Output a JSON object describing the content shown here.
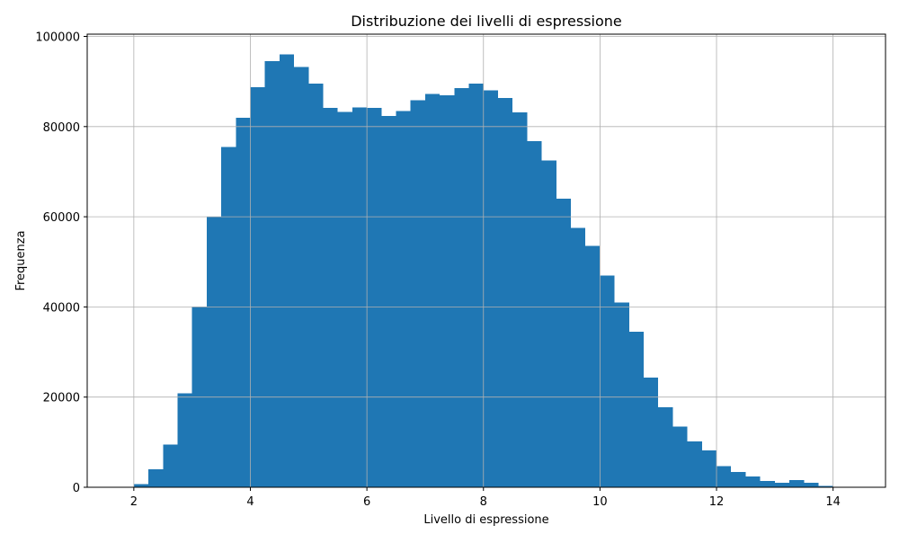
{
  "chart_data": {
    "type": "bar",
    "title": "Distribuzione dei livelli di espressione",
    "xlabel": "Livello di espressione",
    "ylabel": "Frequenza",
    "xlim": [
      1.2,
      14.9
    ],
    "ylim": [
      0,
      100500
    ],
    "xticks": [
      2,
      4,
      6,
      8,
      10,
      12,
      14
    ],
    "yticks": [
      0,
      20000,
      40000,
      60000,
      80000,
      100000
    ],
    "grid": true,
    "legend": "none",
    "bar_color": "#1f77b4",
    "bin_start": 2.0,
    "bin_width": 0.25,
    "values": [
      700,
      4000,
      9500,
      20800,
      40000,
      60000,
      75500,
      82000,
      88700,
      94500,
      96000,
      93200,
      89500,
      84100,
      83300,
      84200,
      84100,
      82400,
      83500,
      85800,
      87200,
      86900,
      88500,
      89500,
      88000,
      86300,
      83200,
      76800,
      72500,
      64000,
      57500,
      53500,
      47000,
      41000,
      34500,
      24300,
      17700,
      13500,
      10200,
      8200,
      4700,
      3400,
      2400,
      1400,
      1000,
      1600,
      1000,
      300
    ]
  }
}
